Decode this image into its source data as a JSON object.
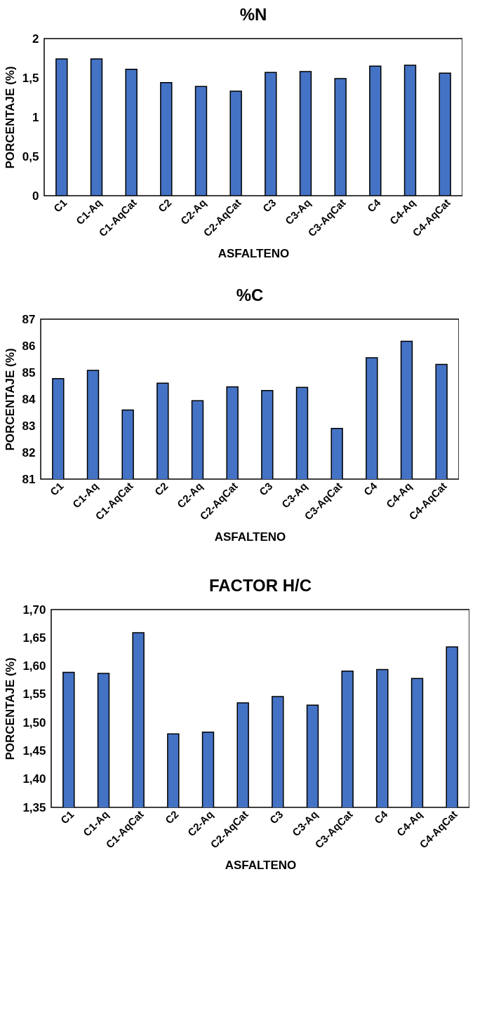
{
  "chart_data": [
    {
      "type": "bar",
      "title": "%N",
      "xlabel": "ASFALTENO",
      "ylabel": "PORCENTAJE (%)",
      "categories": [
        "C1",
        "C1-Aq",
        "C1-AqCat",
        "C2",
        "C2-Aq",
        "C2-AqCat",
        "C3",
        "C3-Aq",
        "C3-AqCat",
        "C4",
        "C4-Aq",
        "C4-AqCat"
      ],
      "color": "#4472c4",
      "values": [
        1.74,
        1.74,
        1.61,
        1.44,
        1.39,
        1.33,
        1.57,
        1.58,
        1.49,
        1.65,
        1.66,
        1.56
      ],
      "ylim": [
        0,
        2
      ],
      "yticks": [
        0,
        {
          "value": 0.5,
          "label": "0,5"
        },
        1,
        {
          "value": 1.5,
          "label": "1,5"
        },
        2
      ],
      "grid": false
    },
    {
      "type": "bar",
      "title": "%C",
      "xlabel": "ASFALTENO",
      "ylabel": "PORCENTAJE (%)",
      "categories": [
        "C1",
        "C1-Aq",
        "C1-AqCat",
        "C2",
        "C2-Aq",
        "C2-AqCat",
        "C3",
        "C3-Aq",
        "C3-AqCat",
        "C4",
        "C4-Aq",
        "C4-AqCat"
      ],
      "color": "#4472c4",
      "values": [
        84.77,
        85.08,
        83.59,
        84.6,
        83.94,
        84.46,
        84.32,
        84.44,
        82.9,
        85.55,
        86.17,
        85.3
      ],
      "ylim": [
        81,
        87
      ],
      "yticks": [
        81,
        82,
        83,
        84,
        85,
        86,
        87
      ],
      "grid": false
    },
    {
      "type": "bar",
      "title": "FACTOR H/C",
      "xlabel": "ASFALTENO",
      "ylabel": "PORCENTAJE (%)",
      "categories": [
        "C1",
        "C1-Aq",
        "C1-AqCat",
        "C2",
        "C2-Aq",
        "C2-AqCat",
        "C3",
        "C3-Aq",
        "C3-AqCat",
        "C4",
        "C4-Aq",
        "C4-AqCat"
      ],
      "color": "#4472c4",
      "values": [
        1.589,
        1.587,
        1.659,
        1.48,
        1.483,
        1.535,
        1.546,
        1.531,
        1.591,
        1.594,
        1.578,
        1.634
      ],
      "ylim": [
        1.35,
        1.7
      ],
      "yticks": [
        {
          "value": 1.35,
          "label": "1,35"
        },
        {
          "value": 1.4,
          "label": "1,40"
        },
        {
          "value": 1.45,
          "label": "1,45"
        },
        {
          "value": 1.5,
          "label": "1,50"
        },
        {
          "value": 1.55,
          "label": "1,55"
        },
        {
          "value": 1.6,
          "label": "1,60"
        },
        {
          "value": 1.65,
          "label": "1,65"
        },
        {
          "value": 1.7,
          "label": "1,70"
        }
      ],
      "grid": false
    }
  ]
}
